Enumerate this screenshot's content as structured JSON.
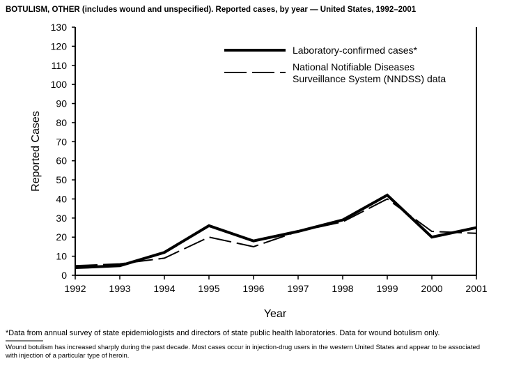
{
  "chart_data": {
    "type": "line",
    "title": "BOTULISM, OTHER (includes wound and unspecified). Reported cases, by year — United States, 1992–2001",
    "xlabel": "Year",
    "ylabel": "Reported Cases",
    "x": [
      1992,
      1993,
      1994,
      1995,
      1996,
      1997,
      1998,
      1999,
      2000,
      2001
    ],
    "ylim": [
      0,
      130
    ],
    "yticks": [
      0,
      10,
      20,
      30,
      40,
      50,
      60,
      70,
      80,
      90,
      100,
      110,
      120,
      130
    ],
    "grid": false,
    "legend_position": "top-center",
    "series": [
      {
        "name": "Laboratory-confirmed cases*",
        "style": "solid-thick",
        "values": [
          4,
          5,
          12,
          26,
          18,
          23,
          29,
          42,
          20,
          25
        ]
      },
      {
        "name_lines": [
          "National Notifiable Diseases",
          "Surveillance System (NNDSS) data"
        ],
        "name": "National Notifiable Diseases Surveillance System (NNDSS) data",
        "style": "dashed",
        "values": [
          5,
          6,
          9,
          20,
          15,
          23,
          28,
          40,
          23,
          22
        ]
      }
    ]
  },
  "footnote": "*Data from annual survey of state epidemiologists and directors of state public health laboratories. Data for wound botulism only.",
  "note_lines": [
    "Wound botulism has increased sharply during the past decade. Most cases occur in injection-drug users in the western United States and appear to be associated",
    "with injection of a particular type of heroin."
  ]
}
